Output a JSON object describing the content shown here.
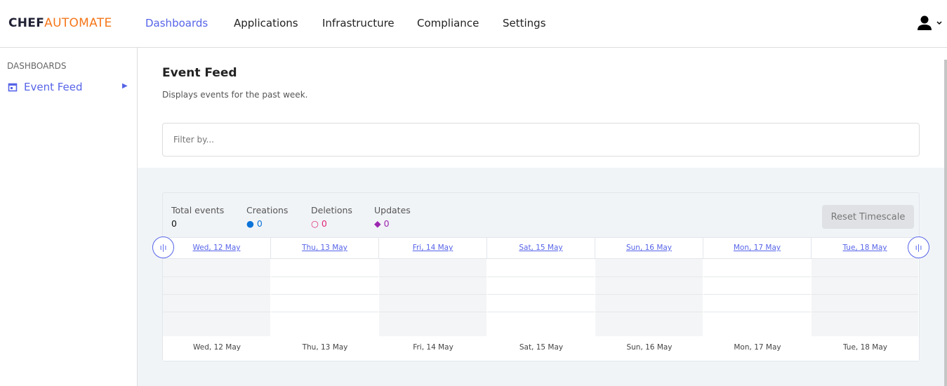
{
  "header": {
    "logo_a": "CHEF",
    "logo_b": "AUTOMATE",
    "nav": [
      "Dashboards",
      "Applications",
      "Infrastructure",
      "Compliance",
      "Settings"
    ],
    "active": "Dashboards"
  },
  "sidebar": {
    "caption": "DASHBOARDS",
    "items": [
      {
        "label": "Event Feed",
        "icon": "calendar-icon"
      }
    ]
  },
  "main": {
    "title": "Event Feed",
    "subtitle": "Displays events for the past week.",
    "filter_placeholder": "Filter by...",
    "stats": {
      "total_label": "Total events",
      "total": "0",
      "creations_label": "Creations",
      "creations": "0",
      "deletions_label": "Deletions",
      "deletions": "0",
      "updates_label": "Updates",
      "updates": "0"
    },
    "reset_label": "Reset Timescale",
    "days": [
      "Wed, 12 May",
      "Thu, 13 May",
      "Fri, 14 May",
      "Sat, 15 May",
      "Sun, 16 May",
      "Mon, 17 May",
      "Tue, 18 May"
    ]
  },
  "colors": {
    "accent": "#5664e8",
    "brand": "#f5761a",
    "creations": "#0b73d9",
    "deletions": "#e0267a",
    "updates": "#9c27b0"
  }
}
